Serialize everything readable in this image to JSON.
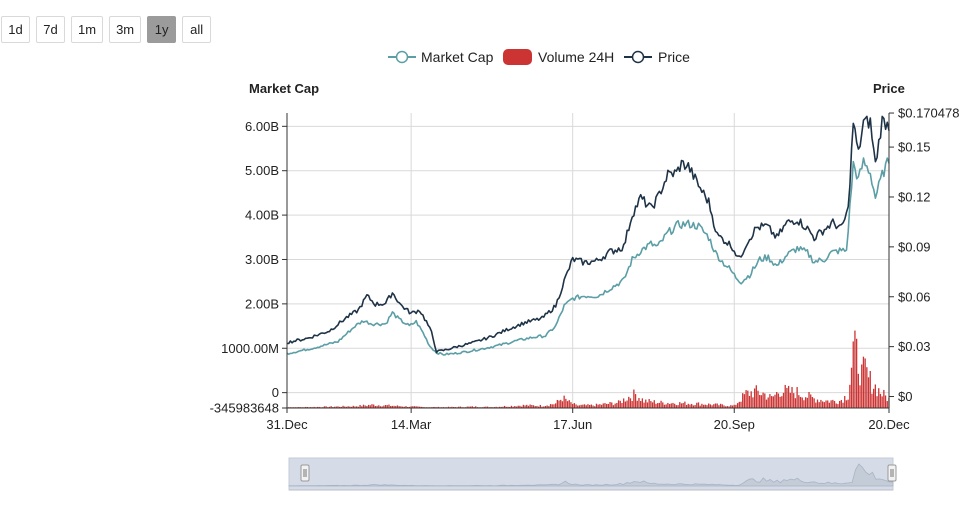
{
  "range_buttons": [
    {
      "label": "1d",
      "active": false
    },
    {
      "label": "7d",
      "active": false
    },
    {
      "label": "1m",
      "active": false
    },
    {
      "label": "3m",
      "active": false
    },
    {
      "label": "1y",
      "active": true
    },
    {
      "label": "all",
      "active": false
    }
  ],
  "colors": {
    "market_cap": "#5b9ea6",
    "volume": "#cc3333",
    "price": "#1f3347",
    "grid": "#d9d9d9",
    "navigator_fill": "#d5dce8"
  },
  "chart_data": {
    "type": "line",
    "legend": [
      "Market Cap",
      "Volume 24H",
      "Price"
    ],
    "left_axis": {
      "title": "Market Cap",
      "ticks": [
        -345983648,
        0,
        1000000000,
        2000000000,
        3000000000,
        4000000000,
        5000000000,
        6000000000
      ],
      "tick_labels": [
        "-345983648",
        "0",
        "1000.00M",
        "2.00B",
        "3.00B",
        "4.00B",
        "5.00B",
        "6.00B"
      ],
      "range": [
        -345983648,
        6300000000
      ]
    },
    "right_axis": {
      "title": "Price",
      "ticks": [
        0,
        0.03,
        0.06,
        0.09,
        0.12,
        0.15,
        0.170478
      ],
      "tick_labels": [
        "$0",
        "$0.03",
        "$0.06",
        "$0.09",
        "$0.12",
        "$0.15",
        "$0.170478"
      ],
      "range": [
        -0.0069,
        0.1705
      ]
    },
    "x_axis": {
      "tick_labels": [
        "31.Dec",
        "14.Mar",
        "17.Jun",
        "20.Sep",
        "20.Dec"
      ],
      "tick_days": [
        0,
        73,
        168,
        263,
        354
      ],
      "range_days": [
        0,
        354
      ]
    },
    "series": [
      {
        "name": "Market Cap",
        "axis": "left",
        "points": [
          [
            0,
            880000000
          ],
          [
            15,
            1000000000
          ],
          [
            30,
            1150000000
          ],
          [
            40,
            1500000000
          ],
          [
            45,
            1620000000
          ],
          [
            50,
            1550000000
          ],
          [
            58,
            1550000000
          ],
          [
            62,
            1800000000
          ],
          [
            66,
            1650000000
          ],
          [
            72,
            1500000000
          ],
          [
            76,
            1600000000
          ],
          [
            80,
            1350000000
          ],
          [
            84,
            1050000000
          ],
          [
            88,
            900000000
          ],
          [
            92,
            860000000
          ],
          [
            98,
            880000000
          ],
          [
            105,
            920000000
          ],
          [
            115,
            990000000
          ],
          [
            125,
            1070000000
          ],
          [
            135,
            1170000000
          ],
          [
            145,
            1250000000
          ],
          [
            152,
            1280000000
          ],
          [
            158,
            1500000000
          ],
          [
            163,
            1950000000
          ],
          [
            168,
            2120000000
          ],
          [
            175,
            2180000000
          ],
          [
            183,
            2180000000
          ],
          [
            190,
            2350000000
          ],
          [
            198,
            2530000000
          ],
          [
            203,
            3000000000
          ],
          [
            208,
            3200000000
          ],
          [
            214,
            3350000000
          ],
          [
            218,
            3280000000
          ],
          [
            224,
            3600000000
          ],
          [
            230,
            3780000000
          ],
          [
            236,
            3800000000
          ],
          [
            242,
            3750000000
          ],
          [
            248,
            3500000000
          ],
          [
            252,
            3150000000
          ],
          [
            256,
            2950000000
          ],
          [
            260,
            2800000000
          ],
          [
            264,
            2600000000
          ],
          [
            267,
            2500000000
          ],
          [
            272,
            2650000000
          ],
          [
            278,
            3000000000
          ],
          [
            283,
            3050000000
          ],
          [
            288,
            2850000000
          ],
          [
            294,
            3100000000
          ],
          [
            300,
            3250000000
          ],
          [
            306,
            3150000000
          ],
          [
            310,
            2950000000
          ],
          [
            316,
            3000000000
          ],
          [
            320,
            3150000000
          ],
          [
            325,
            3200000000
          ],
          [
            329,
            3200000000
          ],
          [
            333,
            5150000000
          ],
          [
            336,
            4800000000
          ],
          [
            339,
            5200000000
          ],
          [
            343,
            4950000000
          ],
          [
            346,
            4400000000
          ],
          [
            350,
            4900000000
          ],
          [
            354,
            5250000000
          ]
        ]
      },
      {
        "name": "Price",
        "axis": "right",
        "points": [
          [
            0,
            0.0325
          ],
          [
            12,
            0.035
          ],
          [
            25,
            0.0395
          ],
          [
            35,
            0.0475
          ],
          [
            42,
            0.052
          ],
          [
            47,
            0.0605
          ],
          [
            52,
            0.0555
          ],
          [
            58,
            0.056
          ],
          [
            62,
            0.0625
          ],
          [
            67,
            0.055
          ],
          [
            73,
            0.05
          ],
          [
            78,
            0.052
          ],
          [
            82,
            0.045
          ],
          [
            85,
            0.0385
          ],
          [
            88,
            0.027
          ],
          [
            93,
            0.028
          ],
          [
            100,
            0.03
          ],
          [
            110,
            0.0325
          ],
          [
            120,
            0.036
          ],
          [
            130,
            0.0405
          ],
          [
            140,
            0.0445
          ],
          [
            150,
            0.047
          ],
          [
            158,
            0.0545
          ],
          [
            163,
            0.0695
          ],
          [
            168,
            0.0825
          ],
          [
            175,
            0.0805
          ],
          [
            182,
            0.0815
          ],
          [
            190,
            0.087
          ],
          [
            198,
            0.09
          ],
          [
            203,
            0.1095
          ],
          [
            208,
            0.1195
          ],
          [
            214,
            0.113
          ],
          [
            218,
            0.1195
          ],
          [
            224,
            0.1335
          ],
          [
            229,
            0.1345
          ],
          [
            232,
            0.14
          ],
          [
            236,
            0.1385
          ],
          [
            242,
            0.127
          ],
          [
            248,
            0.117
          ],
          [
            253,
            0.097
          ],
          [
            258,
            0.0935
          ],
          [
            262,
            0.09
          ],
          [
            266,
            0.0825
          ],
          [
            270,
            0.092
          ],
          [
            276,
            0.1015
          ],
          [
            282,
            0.1025
          ],
          [
            288,
            0.0955
          ],
          [
            294,
            0.1045
          ],
          [
            300,
            0.1065
          ],
          [
            306,
            0.101
          ],
          [
            310,
            0.0955
          ],
          [
            316,
            0.1005
          ],
          [
            321,
            0.1045
          ],
          [
            326,
            0.101
          ],
          [
            330,
            0.1125
          ],
          [
            333,
            0.165
          ],
          [
            336,
            0.146
          ],
          [
            339,
            0.165
          ],
          [
            343,
            0.165
          ],
          [
            346,
            0.1395
          ],
          [
            350,
            0.166
          ],
          [
            354,
            0.163
          ]
        ]
      },
      {
        "name": "Volume 24H",
        "axis": "left",
        "kind": "bars",
        "points": [
          [
            0,
            12000000
          ],
          [
            20,
            25000000
          ],
          [
            40,
            40000000
          ],
          [
            50,
            70000000
          ],
          [
            60,
            55000000
          ],
          [
            70,
            35000000
          ],
          [
            80,
            22000000
          ],
          [
            90,
            18000000
          ],
          [
            100,
            22000000
          ],
          [
            110,
            30000000
          ],
          [
            120,
            22000000
          ],
          [
            140,
            60000000
          ],
          [
            150,
            50000000
          ],
          [
            158,
            100000000
          ],
          [
            162,
            230000000
          ],
          [
            166,
            130000000
          ],
          [
            170,
            60000000
          ],
          [
            180,
            60000000
          ],
          [
            195,
            120000000
          ],
          [
            200,
            230000000
          ],
          [
            205,
            310000000
          ],
          [
            210,
            160000000
          ],
          [
            215,
            140000000
          ],
          [
            220,
            120000000
          ],
          [
            230,
            110000000
          ],
          [
            240,
            100000000
          ],
          [
            250,
            80000000
          ],
          [
            260,
            55000000
          ],
          [
            263,
            50000000
          ],
          [
            270,
            320000000
          ],
          [
            275,
            370000000
          ],
          [
            280,
            330000000
          ],
          [
            285,
            220000000
          ],
          [
            290,
            400000000
          ],
          [
            295,
            360000000
          ],
          [
            300,
            350000000
          ],
          [
            305,
            280000000
          ],
          [
            310,
            210000000
          ],
          [
            318,
            160000000
          ],
          [
            325,
            160000000
          ],
          [
            330,
            300000000
          ],
          [
            333,
            1300000000
          ],
          [
            336,
            1100000000
          ],
          [
            338,
            750000000
          ],
          [
            340,
            850000000
          ],
          [
            342,
            650000000
          ],
          [
            346,
            480000000
          ],
          [
            350,
            320000000
          ],
          [
            354,
            200000000
          ]
        ]
      }
    ]
  }
}
